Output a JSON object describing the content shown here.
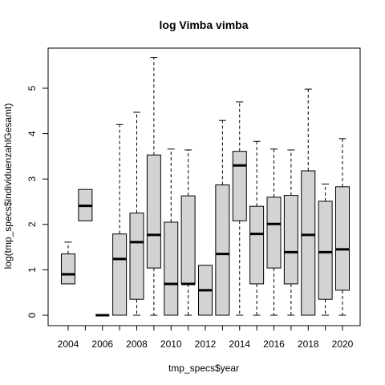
{
  "chart_data": {
    "type": "boxplot",
    "title": "log Vimba vimba",
    "xlabel": "tmp_specs$year",
    "ylabel": "log(tmp_specs$individuenzahlGesamt)",
    "categories": [
      "2004",
      "2005",
      "2006",
      "2007",
      "2008",
      "2009",
      "2010",
      "2011",
      "2012",
      "2013",
      "2014",
      "2015",
      "2016",
      "2017",
      "2018",
      "2019",
      "2020"
    ],
    "x_tick_labels": [
      "2004",
      "2006",
      "2008",
      "2010",
      "2012",
      "2014",
      "2016",
      "2018",
      "2020"
    ],
    "y_ticks": [
      0,
      1,
      2,
      3,
      4,
      5
    ],
    "ylim": [
      -0.25,
      5.9
    ],
    "box_fill": "#d3d3d3",
    "boxes": [
      {
        "year": "2004",
        "min": 0.69,
        "q1": 0.69,
        "median": 0.9,
        "q3": 1.35,
        "max": 1.61
      },
      {
        "year": "2005",
        "min": 2.08,
        "q1": 2.08,
        "median": 2.41,
        "q3": 2.77,
        "max": 2.77
      },
      {
        "year": "2006",
        "min": 0,
        "q1": 0,
        "median": 0,
        "q3": 0,
        "max": 0
      },
      {
        "year": "2007",
        "min": 0,
        "q1": 0,
        "median": 1.24,
        "q3": 1.79,
        "max": 4.2
      },
      {
        "year": "2008",
        "min": 0,
        "q1": 0.35,
        "median": 1.61,
        "q3": 2.25,
        "max": 4.47
      },
      {
        "year": "2009",
        "min": 0,
        "q1": 1.04,
        "median": 1.77,
        "q3": 3.53,
        "max": 5.68
      },
      {
        "year": "2010",
        "min": 0,
        "q1": 0,
        "median": 0.69,
        "q3": 2.05,
        "max": 3.66
      },
      {
        "year": "2011",
        "min": 0,
        "q1": 0.69,
        "median": 0.69,
        "q3": 2.63,
        "max": 3.64
      },
      {
        "year": "2012",
        "min": 0,
        "q1": 0,
        "median": 0.55,
        "q3": 1.1,
        "max": 1.1
      },
      {
        "year": "2013",
        "min": 0,
        "q1": 0,
        "median": 1.35,
        "q3": 2.87,
        "max": 4.29
      },
      {
        "year": "2014",
        "min": 0,
        "q1": 2.08,
        "median": 3.3,
        "q3": 3.61,
        "max": 4.7
      },
      {
        "year": "2015",
        "min": 0,
        "q1": 0.69,
        "median": 1.79,
        "q3": 2.4,
        "max": 3.83
      },
      {
        "year": "2016",
        "min": 0,
        "q1": 1.04,
        "median": 2.01,
        "q3": 2.6,
        "max": 3.66
      },
      {
        "year": "2017",
        "min": 0,
        "q1": 0.69,
        "median": 1.39,
        "q3": 2.64,
        "max": 3.64
      },
      {
        "year": "2018",
        "min": 0,
        "q1": 0,
        "median": 1.77,
        "q3": 3.18,
        "max": 4.98
      },
      {
        "year": "2019",
        "min": 0,
        "q1": 0.35,
        "median": 1.39,
        "q3": 2.51,
        "max": 2.89
      },
      {
        "year": "2020",
        "min": 0,
        "q1": 0.55,
        "median": 1.45,
        "q3": 2.83,
        "max": 3.89
      }
    ]
  }
}
